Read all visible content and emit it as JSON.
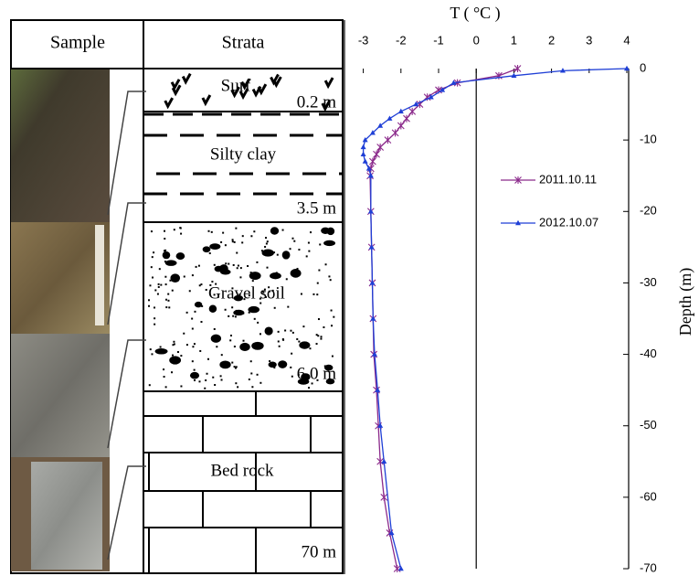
{
  "diagram": {
    "header": {
      "sample": "Sample",
      "strata": "Strata"
    },
    "layers": [
      {
        "name": "Surf",
        "depth": "0.2 m"
      },
      {
        "name": "Silty clay",
        "depth": "3.5 m"
      },
      {
        "name": "Gravel soil",
        "depth": "6.0 m"
      },
      {
        "name": "Bed rock",
        "depth": "70 m"
      }
    ]
  },
  "chart_data": {
    "type": "line",
    "x_label": "T ( °C )",
    "y_label": "Depth (m)",
    "xlim": [
      -3.5,
      4
    ],
    "xticks": [
      -3,
      -2,
      -1,
      0,
      1,
      2,
      3,
      4
    ],
    "ylim": [
      -70,
      0
    ],
    "yticks": [
      0,
      -10,
      -20,
      -30,
      -40,
      -50,
      -60,
      -70
    ],
    "legend": "right",
    "series": [
      {
        "name": "2011.10.11",
        "color": "#8b2a8b",
        "marker": "star",
        "x": [
          1.1,
          0.6,
          -0.5,
          -1.0,
          -1.3,
          -1.5,
          -1.7,
          -1.85,
          -2.0,
          -2.15,
          -2.35,
          -2.55,
          -2.65,
          -2.75,
          -2.8,
          -2.82,
          -2.8,
          -2.78,
          -2.76,
          -2.74,
          -2.72,
          -2.65,
          -2.6,
          -2.55,
          -2.45,
          -2.3,
          -2.1
        ],
        "values": [
          0,
          -1,
          -2,
          -3,
          -4,
          -5,
          -6,
          -7,
          -8,
          -9,
          -10,
          -11,
          -12,
          -13,
          -14,
          -15,
          -20,
          -25,
          -30,
          -35,
          -40,
          -45,
          -50,
          -55,
          -60,
          -65,
          -70
        ]
      },
      {
        "name": "2012.10.07",
        "color": "#1f3fd6",
        "marker": "triangle",
        "x": [
          4.0,
          2.3,
          1.0,
          -0.6,
          -0.9,
          -1.2,
          -1.6,
          -2.0,
          -2.3,
          -2.55,
          -2.75,
          -2.95,
          -3.0,
          -3.0,
          -2.95,
          -2.85,
          -2.8,
          -2.8,
          -2.78,
          -2.76,
          -2.74,
          -2.7,
          -2.62,
          -2.55,
          -2.45,
          -2.25,
          -2.0
        ],
        "values": [
          0,
          -0.3,
          -1,
          -2,
          -3,
          -4,
          -5,
          -6,
          -7,
          -8,
          -9,
          -10,
          -11,
          -12,
          -13,
          -14,
          -15,
          -20,
          -25,
          -30,
          -35,
          -40,
          -45,
          -50,
          -55,
          -65,
          -70
        ]
      }
    ]
  }
}
